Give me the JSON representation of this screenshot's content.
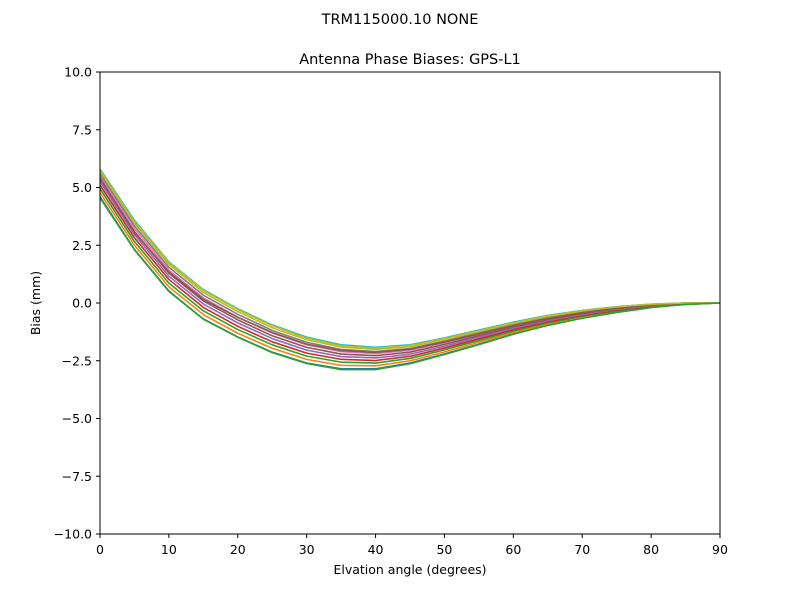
{
  "figure": {
    "suptitle": "TRM115000.10    NONE"
  },
  "chart_data": {
    "type": "line",
    "title": "Antenna Phase Biases: GPS-L1",
    "xlabel": "Elvation angle (degrees)",
    "ylabel": "Bias (mm)",
    "xlim": [
      0,
      90
    ],
    "ylim": [
      -10,
      10
    ],
    "xticks": [
      0,
      10,
      20,
      30,
      40,
      50,
      60,
      70,
      80,
      90
    ],
    "yticks": [
      -10.0,
      -7.5,
      -5.0,
      -2.5,
      0.0,
      2.5,
      5.0,
      7.5,
      10.0
    ],
    "xtick_labels": [
      "0",
      "10",
      "20",
      "30",
      "40",
      "50",
      "60",
      "70",
      "80",
      "90"
    ],
    "ytick_labels": [
      "−10.0",
      "−7.5",
      "−5.0",
      "−2.5",
      "0.0",
      "2.5",
      "5.0",
      "7.5",
      "10.0"
    ],
    "grid": false,
    "legend": "none",
    "x": [
      0,
      5,
      10,
      15,
      20,
      25,
      30,
      35,
      40,
      45,
      50,
      55,
      60,
      65,
      70,
      75,
      80,
      85,
      90
    ],
    "series": [
      {
        "color": "#1f77b4",
        "values": [
          4.6,
          2.32,
          0.52,
          -0.69,
          -1.47,
          -2.13,
          -2.6,
          -2.85,
          -2.85,
          -2.6,
          -2.21,
          -1.78,
          -1.33,
          -0.96,
          -0.65,
          -0.4,
          -0.19,
          -0.06,
          0.0
        ]
      },
      {
        "color": "#ff7f0e",
        "values": [
          4.78,
          2.5,
          0.7,
          -0.5,
          -1.31,
          -1.96,
          -2.44,
          -2.7,
          -2.72,
          -2.5,
          -2.12,
          -1.7,
          -1.27,
          -0.91,
          -0.61,
          -0.37,
          -0.17,
          -0.05,
          0.0
        ]
      },
      {
        "color": "#2ca02c",
        "values": [
          4.95,
          2.66,
          0.86,
          -0.34,
          -1.15,
          -1.81,
          -2.3,
          -2.56,
          -2.6,
          -2.4,
          -2.03,
          -1.62,
          -1.21,
          -0.86,
          -0.57,
          -0.34,
          -0.15,
          -0.04,
          0.0
        ]
      },
      {
        "color": "#d62728",
        "values": [
          5.1,
          2.82,
          1.02,
          -0.19,
          -1.01,
          -1.68,
          -2.17,
          -2.44,
          -2.49,
          -2.31,
          -1.95,
          -1.55,
          -1.15,
          -0.81,
          -0.53,
          -0.31,
          -0.13,
          -0.03,
          0.0
        ]
      },
      {
        "color": "#9467bd",
        "values": [
          5.25,
          2.96,
          1.16,
          -0.04,
          -0.86,
          -1.54,
          -2.04,
          -2.32,
          -2.38,
          -2.22,
          -1.87,
          -1.48,
          -1.09,
          -0.76,
          -0.49,
          -0.28,
          -0.11,
          -0.02,
          0.0
        ]
      },
      {
        "color": "#8c564b",
        "values": [
          5.38,
          3.09,
          1.29,
          0.09,
          -0.73,
          -1.42,
          -1.92,
          -2.21,
          -2.28,
          -2.13,
          -1.79,
          -1.41,
          -1.03,
          -0.71,
          -0.45,
          -0.25,
          -0.09,
          -0.01,
          0.0
        ]
      },
      {
        "color": "#e377c2",
        "values": [
          5.5,
          3.22,
          1.42,
          0.22,
          -0.61,
          -1.3,
          -1.81,
          -2.11,
          -2.19,
          -2.05,
          -1.72,
          -1.35,
          -0.98,
          -0.66,
          -0.41,
          -0.22,
          -0.08,
          -0.01,
          0.0
        ]
      },
      {
        "color": "#7f7f7f",
        "values": [
          5.6,
          3.34,
          1.54,
          0.34,
          -0.49,
          -1.19,
          -1.7,
          -2.01,
          -2.1,
          -1.97,
          -1.65,
          -1.29,
          -0.93,
          -0.62,
          -0.38,
          -0.2,
          -0.07,
          0.0,
          0.0
        ]
      },
      {
        "color": "#bcbd22",
        "values": [
          5.7,
          3.46,
          1.66,
          0.46,
          -0.37,
          -1.07,
          -1.59,
          -1.91,
          -2.01,
          -1.89,
          -1.58,
          -1.23,
          -0.88,
          -0.58,
          -0.35,
          -0.18,
          -0.06,
          0.0,
          0.0
        ]
      },
      {
        "color": "#17becf",
        "values": [
          5.8,
          3.58,
          1.78,
          0.58,
          -0.25,
          -0.95,
          -1.48,
          -1.81,
          -1.92,
          -1.81,
          -1.51,
          -1.17,
          -0.83,
          -0.54,
          -0.32,
          -0.16,
          -0.05,
          0.0,
          0.0
        ]
      },
      {
        "color": "#8c564b",
        "values": [
          5.4,
          3.06,
          1.34,
          0.16,
          -0.62,
          -1.28,
          -1.78,
          -2.06,
          -2.14,
          -2.0,
          -1.69,
          -1.34,
          -0.98,
          -0.67,
          -0.42,
          -0.22,
          -0.08,
          -0.01,
          0.0
        ]
      },
      {
        "color": "#bcbd22",
        "values": [
          5.75,
          3.52,
          1.75,
          0.55,
          -0.28,
          -0.98,
          -1.52,
          -1.85,
          -1.96,
          -1.84,
          -1.54,
          -1.2,
          -0.86,
          -0.56,
          -0.33,
          -0.17,
          -0.05,
          0.0,
          0.0
        ]
      },
      {
        "color": "#2ca02c",
        "values": [
          4.55,
          2.3,
          0.5,
          -0.7,
          -1.48,
          -2.15,
          -2.62,
          -2.88,
          -2.88,
          -2.63,
          -2.23,
          -1.8,
          -1.35,
          -0.97,
          -0.66,
          -0.41,
          -0.2,
          -0.06,
          0.0
        ]
      }
    ]
  }
}
